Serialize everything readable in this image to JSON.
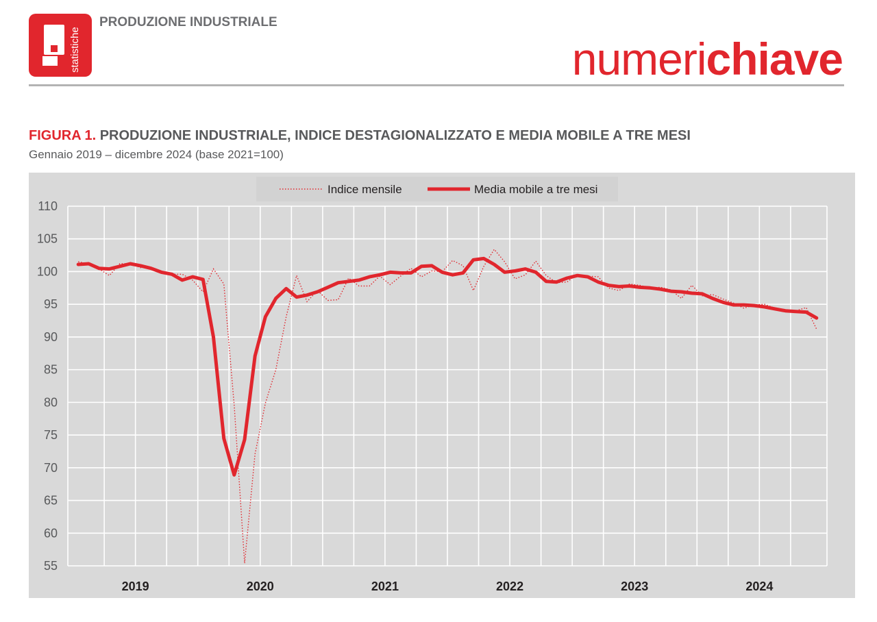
{
  "header": {
    "logo_text": "statistiche",
    "section_title": "PRODUZIONE INDUSTRIALE",
    "brand_light": "numeri",
    "brand_bold": "chiave"
  },
  "figure": {
    "label": "FIGURA 1.",
    "title": "PRODUZIONE INDUSTRIALE, INDICE DESTAGIONALIZZATO E MEDIA MOBILE A TRE MESI",
    "subtitle": "Gennaio 2019 – dicembre 2024 (base 2021=100)"
  },
  "colors": {
    "accent": "#e1262d",
    "plot_bg": "#d9d9d9",
    "grid": "#ffffff",
    "text": "#58595b"
  },
  "chart_data": {
    "type": "line",
    "ylim": [
      55,
      110
    ],
    "yticks": [
      55,
      60,
      65,
      70,
      75,
      80,
      85,
      90,
      95,
      100,
      105,
      110
    ],
    "year_labels": [
      "2019",
      "2020",
      "2021",
      "2022",
      "2023",
      "2024"
    ],
    "legend_position": "top-center",
    "grid": true,
    "series": [
      {
        "name": "Indice mensile",
        "style": "dotted",
        "x_start": "2019-01",
        "values": [
          101.5,
          101.2,
          100.4,
          99.4,
          101.2,
          101.2,
          100.6,
          100.6,
          99.8,
          99.6,
          99.6,
          98.7,
          96.9,
          100.4,
          98.1,
          79.6,
          55.4,
          72.1,
          79.9,
          85.0,
          93.1,
          99.4,
          95.4,
          97.1,
          95.6,
          95.7,
          99.0,
          97.8,
          97.8,
          99.3,
          98.0,
          99.3,
          100.5,
          99.2,
          100.1,
          100.0,
          101.7,
          100.9,
          97.1,
          100.8,
          103.4,
          101.5,
          98.9,
          99.5,
          101.6,
          99.4,
          98.3,
          98.4,
          99.6,
          99.3,
          99.2,
          97.5,
          97.1,
          98.1,
          97.9,
          97.5,
          97.6,
          97.2,
          95.9,
          97.9,
          96.3,
          96.5,
          95.8,
          95.2,
          94.4,
          94.9,
          95.0,
          94.4,
          94.0,
          94.0,
          94.5,
          91.2
        ]
      },
      {
        "name": "Media mobile a tre mesi",
        "style": "solid",
        "x_start": "2019-01",
        "values": [
          101.1,
          101.2,
          100.5,
          100.4,
          100.8,
          101.2,
          100.9,
          100.5,
          99.9,
          99.6,
          98.7,
          99.2,
          98.8,
          90.0,
          74.5,
          68.9,
          74.3,
          87.1,
          93.1,
          95.9,
          97.4,
          96.1,
          96.4,
          96.9,
          97.6,
          98.3,
          98.5,
          98.7,
          99.2,
          99.5,
          99.9,
          99.8,
          99.8,
          100.8,
          100.9,
          99.9,
          99.5,
          99.8,
          101.8,
          102.0,
          101.1,
          99.9,
          100.1,
          100.4,
          99.9,
          98.5,
          98.4,
          99.0,
          99.4,
          99.2,
          98.4,
          97.9,
          97.7,
          97.8,
          97.6,
          97.5,
          97.3,
          97.0,
          96.9,
          96.7,
          96.6,
          95.9,
          95.3,
          94.9,
          94.9,
          94.8,
          94.6,
          94.3,
          94.0,
          93.9,
          93.8,
          92.9
        ]
      }
    ]
  }
}
